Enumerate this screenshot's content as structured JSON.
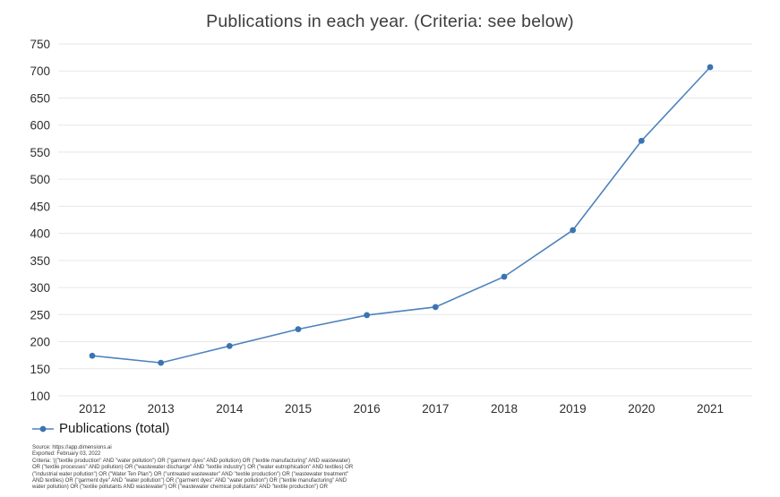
{
  "chart_data": {
    "type": "line",
    "title": "Publications in each year. (Criteria: see below)",
    "categories": [
      "2012",
      "2013",
      "2014",
      "2015",
      "2016",
      "2017",
      "2018",
      "2019",
      "2020",
      "2021"
    ],
    "series": [
      {
        "name": "Publications (total)",
        "values": [
          174,
          161,
          192,
          223,
          249,
          264,
          320,
          406,
          571,
          707
        ]
      }
    ],
    "xlabel": "",
    "ylabel": "",
    "ylim": [
      100,
      750
    ],
    "ytick_step": 50,
    "grid": true,
    "grid_color": "#e7e7e7",
    "legend_position": "bottom-left",
    "line_color": "#4d82bc",
    "marker_color": "#3a74b2"
  },
  "footer": {
    "lines": [
      "Source: https://app.dimensions.ai",
      "Exported: February 03, 2022",
      "Criteria: '((\"textile production\" AND \"water pollution\") OR (\"garment dyes\" AND pollution) OR (\"textile manufacturing\" AND wastewater)",
      "OR (\"textile processes\" AND pollution) OR (\"wastewater discharge\" AND \"textile industry\") OR (\"water eutrophication\" AND textiles) OR",
      "(\"industrial water pollution\") OR (\"Water Ten Plan\") OR (\"untreated wastewater\" AND \"textile production\") OR (\"wastewater treatment\"",
      "AND textiles) OR (\"garment dye\" AND \"water pollution\") OR (\"garment dyes\" AND \"water pollution\") OR (\"textile manufacturing\" AND",
      "water pollution) OR (\"textile pollutants AND wastewater\") OR (\"wastewater chemical pollutants\" AND \"textile production\") OR"
    ]
  }
}
